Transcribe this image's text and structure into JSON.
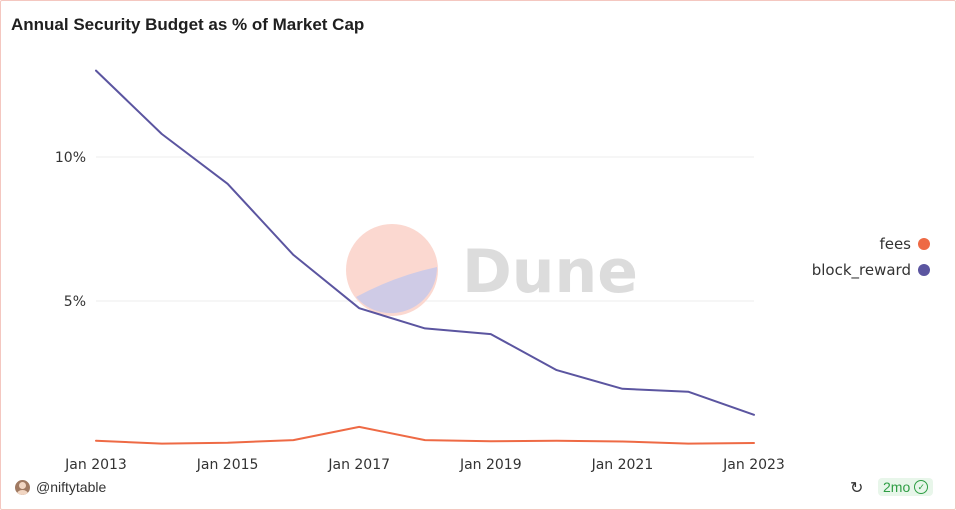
{
  "chart_data": {
    "type": "line",
    "title": "Annual Security Budget as % of Market Cap",
    "xlabel": "",
    "ylabel": "",
    "x": [
      2013,
      2014,
      2015,
      2016,
      2017,
      2018,
      2019,
      2020,
      2021,
      2022,
      2023
    ],
    "x_tick_labels": [
      "Jan 2013",
      "Jan 2015",
      "Jan 2017",
      "Jan 2019",
      "Jan 2021",
      "Jan 2023"
    ],
    "x_tick_values": [
      2013,
      2015,
      2017,
      2019,
      2021,
      2023
    ],
    "y_tick_labels": [
      "10%",
      "5%"
    ],
    "y_tick_values": [
      10,
      5
    ],
    "ylim": [
      0,
      13.5
    ],
    "xlim": [
      2013,
      2023
    ],
    "grid": true,
    "legend_position": "right",
    "series": [
      {
        "name": "fees",
        "color": "#ee6a45",
        "values": [
          0.15,
          0.05,
          0.08,
          0.17,
          0.63,
          0.17,
          0.13,
          0.15,
          0.12,
          0.05,
          0.07
        ]
      },
      {
        "name": "block_reward",
        "color": "#5b55a0",
        "values": [
          13.0,
          10.8,
          9.07,
          6.6,
          4.75,
          4.05,
          3.85,
          2.6,
          1.95,
          1.85,
          1.05
        ]
      }
    ]
  },
  "watermark": "Dune",
  "footer": {
    "username": "@niftytable",
    "age_badge": "2mo",
    "refresh_icon": "refresh-icon",
    "check_icon": "check-circle-icon"
  }
}
